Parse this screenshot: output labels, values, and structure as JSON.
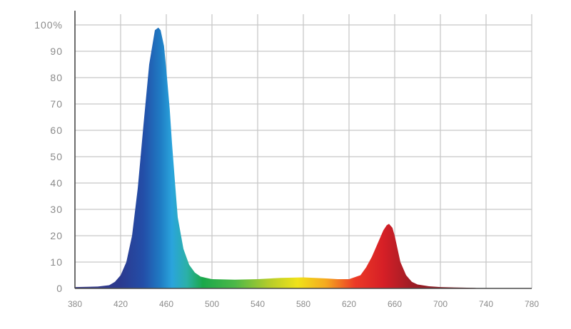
{
  "chart_data": {
    "type": "area",
    "title": "",
    "xlabel": "",
    "ylabel": "",
    "xlim": [
      380,
      780
    ],
    "ylim": [
      0,
      100
    ],
    "grid": true,
    "legend": "none",
    "x_ticks": [
      "380",
      "420",
      "460",
      "500",
      "540",
      "580",
      "620",
      "660",
      "700",
      "740",
      "780"
    ],
    "y_ticks": [
      "0",
      "10",
      "20",
      "30",
      "40",
      "50",
      "60",
      "70",
      "80",
      "90",
      "100%"
    ],
    "series": [
      {
        "x": [
          380,
          400,
          410,
          415,
          420,
          425,
          430,
          435,
          440,
          445,
          450,
          453,
          455,
          458,
          460,
          463,
          465,
          468,
          470,
          475,
          480,
          485,
          490,
          495,
          500,
          520,
          540,
          560,
          580,
          600,
          610,
          620,
          630,
          635,
          640,
          645,
          650,
          653,
          655,
          658,
          660,
          663,
          665,
          670,
          675,
          680,
          690,
          700,
          720,
          730,
          735
        ],
        "y": [
          0.5,
          0.7,
          1.2,
          2.5,
          5,
          10,
          20,
          38,
          62,
          85,
          98,
          99,
          98,
          92,
          83,
          68,
          55,
          38,
          27,
          15,
          9,
          6,
          4.5,
          4,
          3.5,
          3.3,
          3.5,
          4,
          4.2,
          3.8,
          3.5,
          3.5,
          5,
          8,
          12,
          17,
          22,
          24,
          24.5,
          23,
          20,
          14,
          10,
          5,
          2.5,
          1.5,
          0.8,
          0.5,
          0.3,
          0.2,
          0
        ]
      }
    ],
    "colors": {
      "stops": [
        {
          "nm": 380,
          "color": "#3a3a8a"
        },
        {
          "nm": 420,
          "color": "#2b3a8f"
        },
        {
          "nm": 440,
          "color": "#234ea8"
        },
        {
          "nm": 455,
          "color": "#1f7cc4"
        },
        {
          "nm": 465,
          "color": "#2aa4dc"
        },
        {
          "nm": 478,
          "color": "#2bb0a8"
        },
        {
          "nm": 492,
          "color": "#1aa84a"
        },
        {
          "nm": 520,
          "color": "#4cb848"
        },
        {
          "nm": 550,
          "color": "#b5cc2a"
        },
        {
          "nm": 575,
          "color": "#f0e21a"
        },
        {
          "nm": 600,
          "color": "#f5a81e"
        },
        {
          "nm": 625,
          "color": "#ec3a26"
        },
        {
          "nm": 650,
          "color": "#d61f26"
        },
        {
          "nm": 675,
          "color": "#9e1c25"
        },
        {
          "nm": 735,
          "color": "#6a1a20"
        }
      ]
    }
  }
}
